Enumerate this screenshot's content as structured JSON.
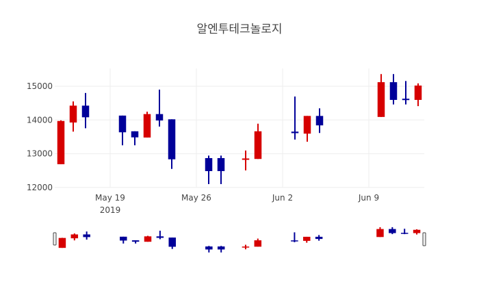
{
  "chart_data": {
    "type": "candlestick",
    "title": "알엔투테크놀로지",
    "xlabel": "",
    "ylabel": "",
    "increasing_color": "#d60000",
    "decreasing_color": "#000099",
    "grid": true,
    "rangeslider": true,
    "xlim": [
      "2019-05-14 12:00",
      "2019-06-13 12:00"
    ],
    "ylim": [
      11998,
      15527
    ],
    "yticks": [
      12000,
      13000,
      14000,
      15000
    ],
    "xticks": [
      {
        "date": "2019-05-19",
        "label": "May 19",
        "sublabel": "2019"
      },
      {
        "date": "2019-05-26",
        "label": "May 26",
        "sublabel": ""
      },
      {
        "date": "2019-06-02",
        "label": "Jun 2",
        "sublabel": ""
      },
      {
        "date": "2019-06-09",
        "label": "Jun 9",
        "sublabel": ""
      }
    ],
    "x": [
      "2019-05-15",
      "2019-05-16",
      "2019-05-17",
      "2019-05-20",
      "2019-05-21",
      "2019-05-22",
      "2019-05-23",
      "2019-05-24",
      "2019-05-27",
      "2019-05-28",
      "2019-05-30",
      "2019-05-31",
      "2019-06-03",
      "2019-06-04",
      "2019-06-05",
      "2019-06-10",
      "2019-06-11",
      "2019-06-12",
      "2019-06-13"
    ],
    "open": [
      12690,
      13925,
      14425,
      14130,
      13665,
      13480,
      14175,
      14020,
      12870,
      12870,
      12850,
      12845,
      13655,
      13595,
      14120,
      14090,
      15120,
      14630,
      14595
    ],
    "high": [
      13990,
      14550,
      14800,
      14130,
      13665,
      14245,
      14900,
      14020,
      12945,
      12945,
      13095,
      13890,
      14695,
      14120,
      14345,
      15360,
      15360,
      15155,
      15085
    ],
    "low": [
      12690,
      13655,
      13755,
      13250,
      13250,
      13480,
      13805,
      12550,
      12100,
      12100,
      12505,
      12845,
      13420,
      13355,
      13615,
      14090,
      14460,
      14460,
      14410
    ],
    "close": [
      13970,
      14425,
      14080,
      13635,
      13485,
      14175,
      13985,
      12835,
      12485,
      12485,
      12860,
      13665,
      13610,
      14120,
      13840,
      15120,
      14595,
      14600,
      15020
    ]
  }
}
